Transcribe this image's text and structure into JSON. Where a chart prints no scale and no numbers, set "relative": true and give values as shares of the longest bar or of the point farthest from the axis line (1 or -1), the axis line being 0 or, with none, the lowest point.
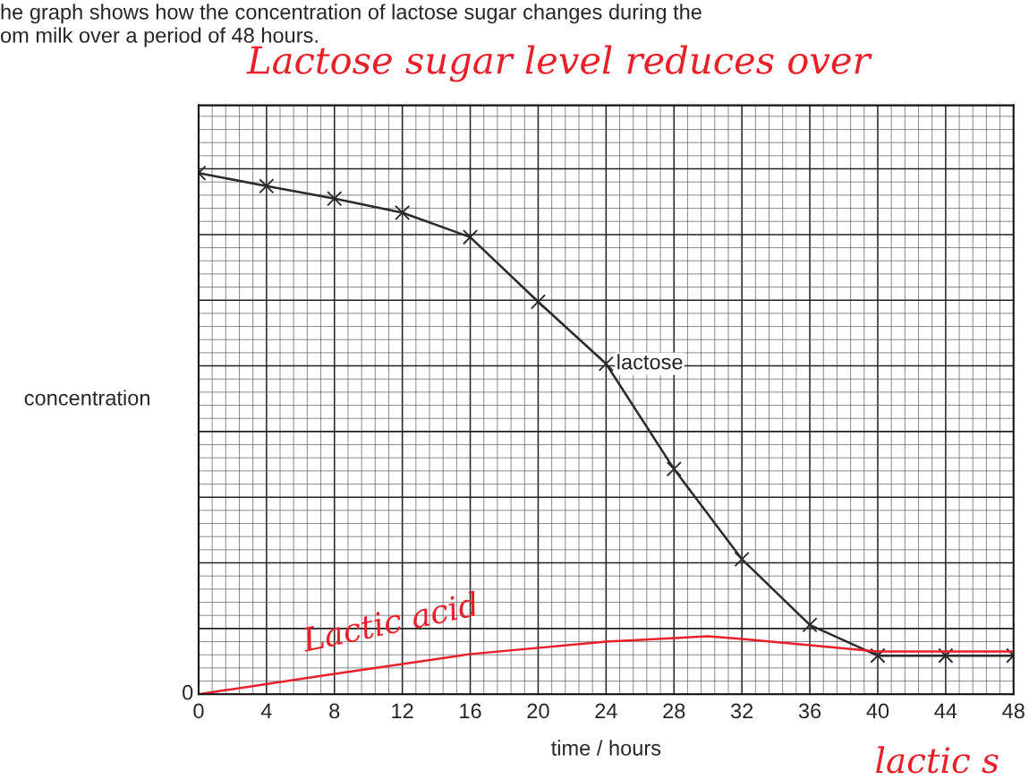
{
  "chart_data": {
    "type": "line",
    "title": "he graph shows how the concentration of lactose sugar changes during the",
    "subtitle": "om milk over a period of 48 hours.",
    "xlabel": "time / hours",
    "ylabel": "concentration",
    "relative": true,
    "x": [
      0,
      4,
      8,
      12,
      16,
      20,
      24,
      28,
      32,
      36,
      40,
      44,
      48
    ],
    "series": [
      {
        "name": "lactose",
        "color": "#2b2b2b",
        "marker": "cross",
        "values": [
          1.0,
          0.975,
          0.951,
          0.924,
          0.877,
          0.753,
          0.634,
          0.432,
          0.259,
          0.133,
          0.074,
          0.074,
          0.074
        ]
      },
      {
        "name": "Lactic acid",
        "color": "#e8202a",
        "marker": "none",
        "x": [
          0,
          8,
          16,
          24,
          30,
          32,
          40,
          48
        ],
        "values": [
          0.0,
          0.039,
          0.077,
          0.101,
          0.111,
          0.106,
          0.082,
          0.082
        ]
      }
    ],
    "xlim": [
      0,
      48
    ],
    "xticks": [
      0,
      4,
      8,
      12,
      16,
      20,
      24,
      28,
      32,
      36,
      40,
      44,
      48
    ],
    "grid": true,
    "legend": false,
    "annotations": [
      "0",
      "Lactose sugar level reduces over",
      "lactic s"
    ]
  }
}
